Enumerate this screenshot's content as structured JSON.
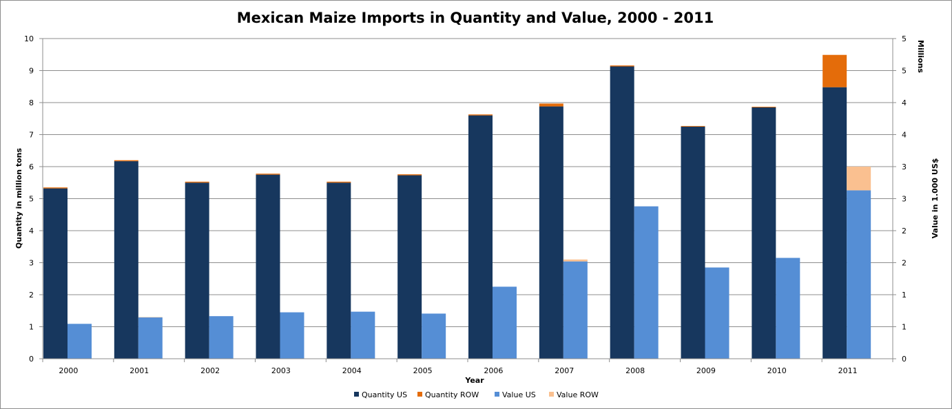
{
  "chart_data": {
    "type": "bar",
    "title": "Mexican Maize Imports in Quantity and Value, 2000 - 2011",
    "xlabel": "Year",
    "ylabel_left": "Quantity in million tons",
    "ylabel_right": "Value in 1.000 US$",
    "right_axis_unit": "Millions",
    "ylim_left": [
      0,
      10
    ],
    "ylim_right": [
      0,
      5
    ],
    "yticks_left": [
      "0",
      "1",
      "2",
      "3",
      "4",
      "5",
      "6",
      "7",
      "8",
      "9",
      "10"
    ],
    "yticks_right": [
      "0",
      "1",
      "1",
      "2",
      "2",
      "3",
      "3",
      "4",
      "4",
      "5",
      "5"
    ],
    "grid": true,
    "legend_position": "bottom",
    "categories": [
      "2000",
      "2001",
      "2002",
      "2003",
      "2004",
      "2005",
      "2006",
      "2007",
      "2008",
      "2009",
      "2010",
      "2011"
    ],
    "series": [
      {
        "name": "Quantity US",
        "axis": "left",
        "stack": "quantity",
        "color": "#17375E",
        "values": [
          5.32,
          6.17,
          5.5,
          5.75,
          5.5,
          5.73,
          7.6,
          7.88,
          9.13,
          7.25,
          7.85,
          8.48
        ]
      },
      {
        "name": "Quantity ROW",
        "axis": "left",
        "stack": "quantity",
        "color": "#E46C0A",
        "values": [
          0.03,
          0.03,
          0.03,
          0.03,
          0.03,
          0.03,
          0.03,
          0.09,
          0.03,
          0.02,
          0.02,
          1.01
        ]
      },
      {
        "name": "Value US",
        "axis": "right",
        "stack": "value",
        "color": "#558ED5",
        "values": [
          0.545,
          0.645,
          0.665,
          0.725,
          0.735,
          0.705,
          1.125,
          1.52,
          2.38,
          1.425,
          1.575,
          2.63
        ]
      },
      {
        "name": "Value ROW",
        "axis": "right",
        "stack": "value",
        "color": "#FAC090",
        "values": [
          0.0,
          0.005,
          0.0,
          0.0,
          0.0,
          0.0,
          0.0,
          0.03,
          0.0,
          0.0,
          0.0,
          0.37
        ]
      }
    ]
  }
}
